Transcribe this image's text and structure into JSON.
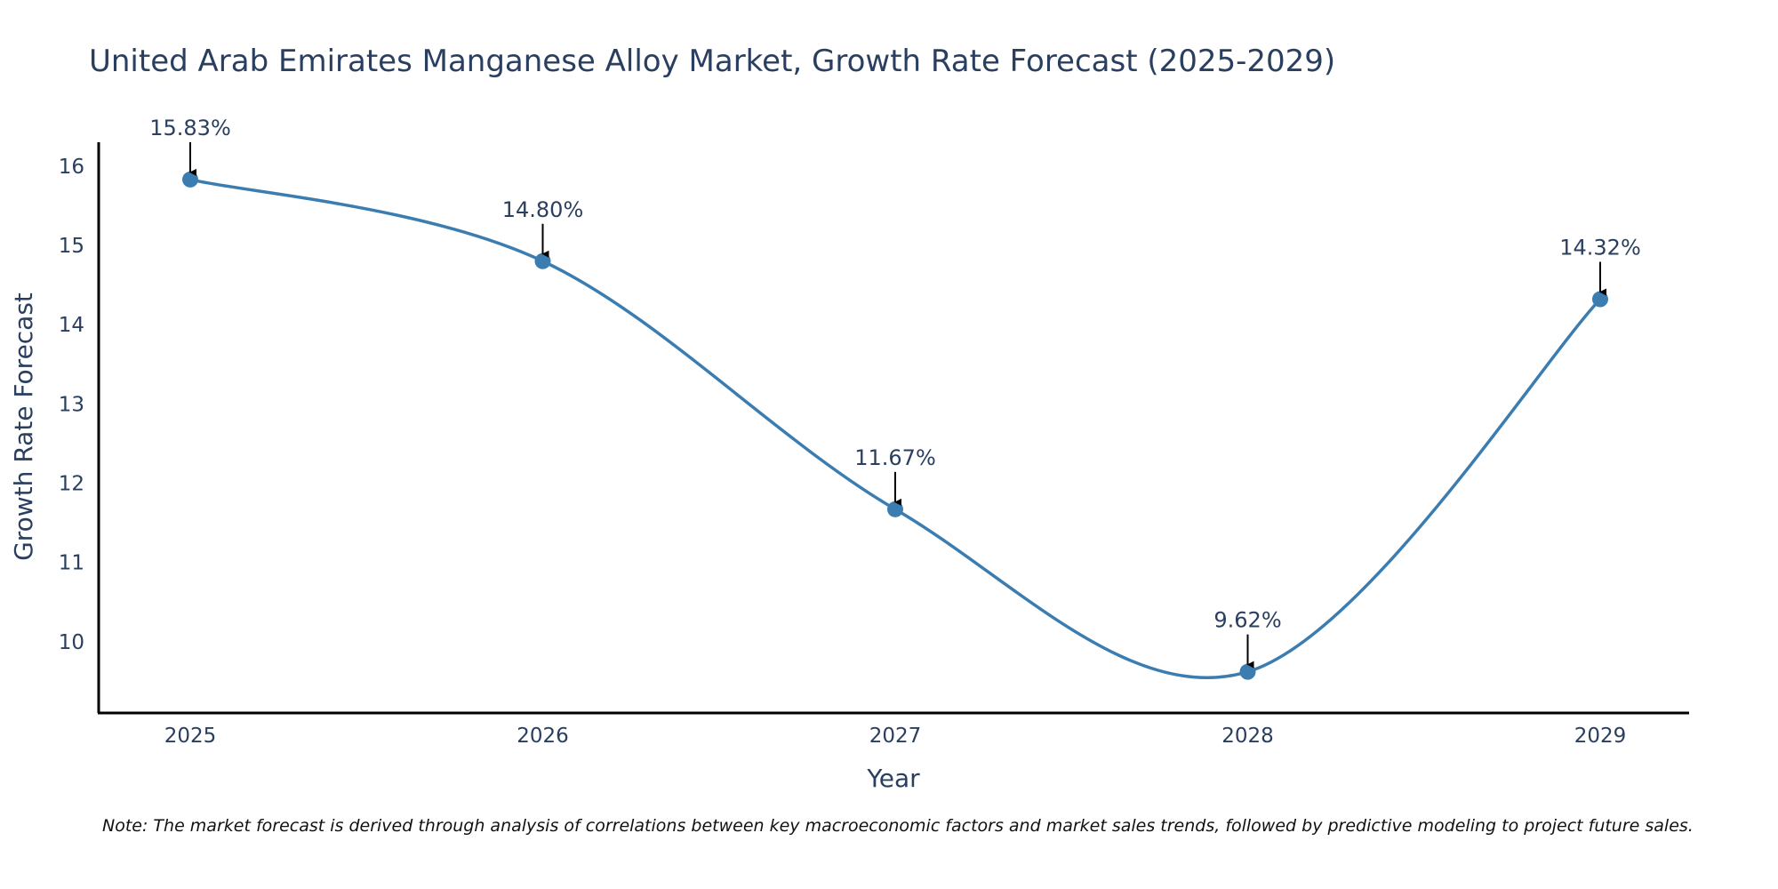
{
  "chart_data": {
    "type": "line",
    "title": "United Arab Emirates Manganese Alloy Market, Growth Rate Forecast (2025-2029)",
    "xlabel": "Year",
    "ylabel": "Growth Rate Forecast",
    "categories": [
      "2025",
      "2026",
      "2027",
      "2028",
      "2029"
    ],
    "series": [
      {
        "name": "Growth Rate Forecast",
        "values": [
          15.83,
          14.8,
          11.67,
          9.62,
          14.32
        ],
        "labels": [
          "15.83%",
          "14.80%",
          "11.67%",
          "9.62%",
          "14.32%"
        ],
        "color": "#3b7db0"
      }
    ],
    "yticks": [
      10,
      11,
      12,
      13,
      14,
      15,
      16
    ],
    "ylim": [
      9.1,
      16.3
    ],
    "grid": false,
    "line_shape": "spline",
    "annotation_arrows": true
  },
  "note": "Note: The market forecast is derived through analysis of correlations between key macroeconomic factors and market sales trends, followed by predictive modeling to project future sales."
}
